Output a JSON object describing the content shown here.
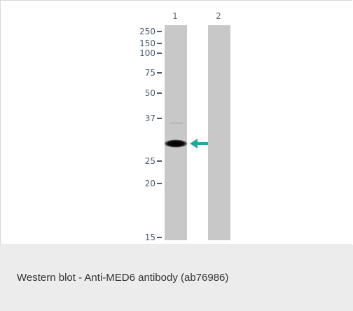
{
  "figure": {
    "lane_labels": [
      "1",
      "2"
    ],
    "markers": [
      "250",
      "150",
      "100",
      "75",
      "50",
      "37",
      "25",
      "20",
      "15"
    ],
    "arrow_color": "#1fa8a0",
    "membrane_color": "#c8c8c8"
  },
  "caption": {
    "text": "Western blot - Anti-MED6 antibody (ab76986)"
  }
}
